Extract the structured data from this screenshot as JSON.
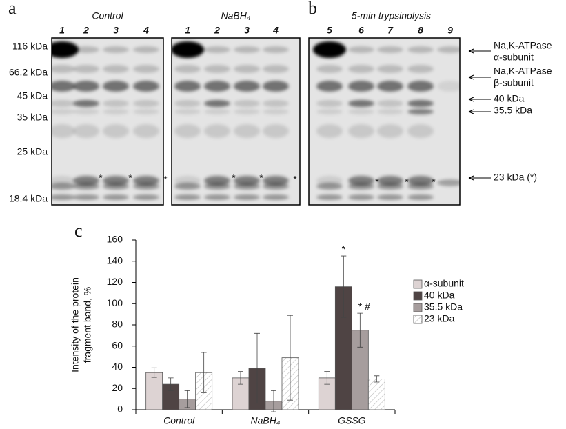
{
  "gel_figure": {
    "panel_a": {
      "label": "a",
      "gels": [
        {
          "title": "Control",
          "lanes": [
            "1",
            "2",
            "3",
            "4"
          ]
        },
        {
          "title": "NaBH₄",
          "lanes": [
            "1",
            "2",
            "3",
            "4"
          ]
        }
      ]
    },
    "panel_b": {
      "label": "b",
      "gels": [
        {
          "title": "5-min trypsinolysis",
          "lanes": [
            "5",
            "6",
            "7",
            "8",
            "9"
          ]
        }
      ]
    },
    "markers": [
      "116 kDa",
      "66.2 kDa",
      "45 kDa",
      "35 kDa",
      "25 kDa",
      "18.4 kDa"
    ],
    "band_labels": [
      [
        "Na,K-ATPase",
        "α-subunit"
      ],
      [
        "Na,K-ATPase",
        "β-subunit"
      ],
      [
        "40 kDa"
      ],
      [
        "35.5 kDa"
      ],
      [
        "23 kDa (*)"
      ]
    ],
    "asterisks": [
      "*",
      "*",
      "*",
      "*",
      "*",
      "*",
      "*",
      "*",
      "*"
    ]
  },
  "chart_data": {
    "type": "bar",
    "panel_label": "c",
    "ylabel": [
      "Intensity of the protein",
      "fragment band, %"
    ],
    "categories": [
      "Control",
      "NaBH₄",
      "GSSG"
    ],
    "series": [
      {
        "name": "α-subunit",
        "color": "#ddd3d3",
        "values": [
          35,
          30,
          30
        ],
        "errors": [
          4.5,
          6,
          6
        ]
      },
      {
        "name": "40 kDa",
        "color": "#4f4444",
        "values": [
          24,
          39,
          116
        ],
        "errors": [
          6,
          33,
          29
        ]
      },
      {
        "name": "35.5 kDa",
        "color": "#a69d9d",
        "values": [
          10,
          8,
          75
        ],
        "errors": [
          8,
          10,
          16
        ]
      },
      {
        "name": "23 kDa",
        "color": "#ffffff",
        "hatch": true,
        "values": [
          35,
          49,
          29
        ],
        "errors": [
          19,
          40,
          3
        ]
      }
    ],
    "ylim": [
      0,
      160
    ],
    "yticks": [
      0,
      20,
      40,
      60,
      80,
      100,
      120,
      140,
      160
    ],
    "annotations": [
      "*",
      "* #"
    ]
  }
}
